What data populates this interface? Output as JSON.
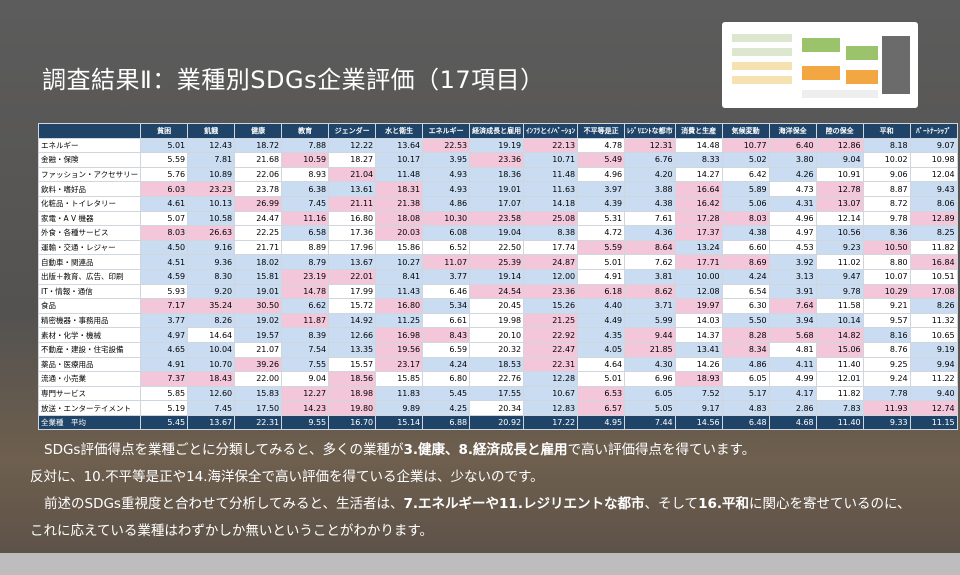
{
  "title": "調査結果Ⅱ：業種別SDGs企業評価（17項目）",
  "table": {
    "columns": [
      "貧困",
      "飢餓",
      "健康",
      "教育",
      "ジェンダー",
      "水と衛生",
      "エネルギー",
      "経済成長と雇用",
      "ｲﾝﾌﾗとｲﾉﾍﾞｰｼｮﾝ",
      "不平等是正",
      "ﾚｼﾞﾘｴﾝﾄな都市",
      "消費と生産",
      "気候変動",
      "海洋保全",
      "陸の保全",
      "平和",
      "ﾊﾟｰﾄﾅｰｼｯﾌﾟ"
    ],
    "rows": [
      {
        "label": "エネルギー",
        "values": [
          5.01,
          12.43,
          18.72,
          7.88,
          12.22,
          13.64,
          22.53,
          19.19,
          22.13,
          4.78,
          12.31,
          14.48,
          10.77,
          6.4,
          12.86,
          8.18,
          9.07
        ]
      },
      {
        "label": "金融・保険",
        "values": [
          5.59,
          7.81,
          21.68,
          10.59,
          18.27,
          10.17,
          3.95,
          23.36,
          10.71,
          5.49,
          6.76,
          8.33,
          5.02,
          3.8,
          9.04,
          10.02,
          10.98
        ]
      },
      {
        "label": "ファッション・アクセサリー",
        "values": [
          5.76,
          10.89,
          22.06,
          8.93,
          21.04,
          11.48,
          4.93,
          18.36,
          11.48,
          4.96,
          4.2,
          14.27,
          6.42,
          4.26,
          10.91,
          9.06,
          12.04
        ]
      },
      {
        "label": "飲料・嗜好品",
        "values": [
          6.03,
          23.23,
          23.78,
          6.38,
          13.61,
          18.31,
          4.93,
          19.01,
          11.63,
          3.97,
          3.88,
          16.64,
          5.89,
          4.73,
          12.78,
          8.87,
          9.43
        ]
      },
      {
        "label": "化粧品・トイレタリー",
        "values": [
          4.61,
          10.13,
          26.99,
          7.45,
          21.11,
          21.38,
          4.86,
          17.07,
          14.18,
          4.39,
          4.38,
          16.42,
          5.06,
          4.31,
          13.07,
          8.72,
          8.06
        ]
      },
      {
        "label": "家電・A V 機器",
        "values": [
          5.07,
          10.58,
          24.47,
          11.16,
          16.8,
          18.08,
          10.3,
          23.58,
          25.08,
          5.31,
          7.61,
          17.28,
          8.03,
          4.96,
          12.14,
          9.78,
          12.89
        ]
      },
      {
        "label": "外食・各種サービス",
        "values": [
          8.03,
          26.63,
          22.25,
          6.58,
          17.36,
          20.03,
          6.08,
          19.04,
          8.38,
          4.72,
          4.36,
          17.37,
          4.38,
          4.97,
          10.56,
          8.36,
          8.25
        ]
      },
      {
        "label": "運輸・交通・レジャー",
        "values": [
          4.5,
          9.16,
          21.71,
          8.89,
          17.96,
          15.86,
          6.52,
          22.5,
          17.74,
          5.59,
          8.64,
          13.24,
          6.6,
          4.53,
          9.23,
          10.5,
          11.82
        ]
      },
      {
        "label": "自動車・関連品",
        "values": [
          4.51,
          9.36,
          18.02,
          8.79,
          13.67,
          10.27,
          11.07,
          25.39,
          24.87,
          5.01,
          7.62,
          17.71,
          8.69,
          3.92,
          11.02,
          8.8,
          16.84
        ]
      },
      {
        "label": "出版＋教育、広告、印刷",
        "values": [
          4.59,
          8.3,
          15.81,
          23.19,
          22.01,
          8.41,
          3.77,
          19.14,
          12.0,
          4.91,
          3.81,
          10.0,
          4.24,
          3.13,
          9.47,
          10.07,
          10.51
        ]
      },
      {
        "label": "IT・情報・通信",
        "values": [
          5.93,
          9.2,
          19.01,
          14.78,
          17.99,
          11.43,
          6.46,
          24.54,
          23.36,
          6.18,
          8.62,
          12.08,
          6.54,
          3.91,
          9.78,
          10.29,
          17.08
        ]
      },
      {
        "label": "食品",
        "values": [
          7.17,
          35.24,
          30.5,
          6.62,
          15.72,
          16.8,
          5.34,
          20.45,
          15.26,
          4.4,
          3.71,
          19.97,
          6.3,
          7.64,
          11.58,
          9.21,
          8.26
        ]
      },
      {
        "label": "精密機器・事務用品",
        "values": [
          3.77,
          8.26,
          19.02,
          11.87,
          14.92,
          11.25,
          6.61,
          19.98,
          21.25,
          4.49,
          5.99,
          14.03,
          5.5,
          3.94,
          10.14,
          9.57,
          11.32
        ]
      },
      {
        "label": "素材・化学・機械",
        "values": [
          4.97,
          14.64,
          19.57,
          8.39,
          12.66,
          16.98,
          8.43,
          20.1,
          22.92,
          4.35,
          9.44,
          14.37,
          8.28,
          5.68,
          14.82,
          8.16,
          10.65
        ]
      },
      {
        "label": "不動産・建設・住宅設備",
        "values": [
          4.65,
          10.04,
          21.07,
          7.54,
          13.35,
          19.56,
          6.59,
          20.32,
          22.47,
          4.05,
          21.85,
          13.41,
          8.34,
          4.81,
          15.06,
          8.76,
          9.19
        ]
      },
      {
        "label": "薬品・医療用品",
        "values": [
          4.91,
          10.7,
          39.26,
          7.55,
          15.57,
          23.17,
          4.24,
          18.53,
          22.31,
          4.64,
          4.3,
          14.26,
          4.86,
          4.11,
          11.4,
          9.25,
          9.94
        ]
      },
      {
        "label": "流通・小売業",
        "values": [
          7.37,
          18.43,
          22.0,
          9.04,
          18.56,
          15.85,
          6.8,
          22.76,
          12.28,
          5.01,
          6.96,
          18.93,
          6.05,
          4.99,
          12.01,
          9.24,
          11.22
        ]
      },
      {
        "label": "専門サービス",
        "values": [
          5.85,
          12.6,
          15.83,
          12.27,
          18.98,
          11.83,
          5.45,
          17.55,
          10.67,
          6.53,
          6.05,
          7.52,
          5.17,
          4.17,
          11.82,
          7.78,
          9.4
        ]
      },
      {
        "label": "放送・エンターテイメント",
        "values": [
          5.19,
          7.45,
          17.5,
          14.23,
          19.8,
          9.89,
          4.25,
          20.34,
          12.83,
          6.57,
          5.05,
          9.17,
          4.83,
          2.86,
          7.83,
          11.93,
          12.74
        ]
      }
    ],
    "average": {
      "label": "全業種　平均",
      "values": [
        5.45,
        13.67,
        22.31,
        9.55,
        16.7,
        15.14,
        6.88,
        20.92,
        17.22,
        4.95,
        7.44,
        14.56,
        6.48,
        4.68,
        11.4,
        9.33,
        11.15
      ]
    },
    "high_color": "#f4c6da",
    "low_color": "#c9dcf2"
  },
  "paragraphs": [
    [
      {
        "text": "SDGs評価得点を業種ごとに分類してみると、多くの業種が"
      },
      {
        "text": "3.健康、8.経済成長と雇用",
        "bold": true
      },
      {
        "text": "で高い評価得点を得ています。"
      }
    ],
    [
      {
        "text": "反対に、10.不平等是正や14.海洋保全で高い評価を得ている企業は、少ないのです。"
      }
    ],
    [
      {
        "text": "前述のSDGs重視度と合わせて分析してみると、生活者は、"
      },
      {
        "text": "7.エネルギーや11.レジリエントな都市",
        "bold": true
      },
      {
        "text": "、そして"
      },
      {
        "text": "16.平和",
        "bold": true
      },
      {
        "text": "に関心を寄せているのに、"
      }
    ],
    [
      {
        "text": "これに応えている業種はわずかしか無いということがわかります。"
      }
    ]
  ]
}
